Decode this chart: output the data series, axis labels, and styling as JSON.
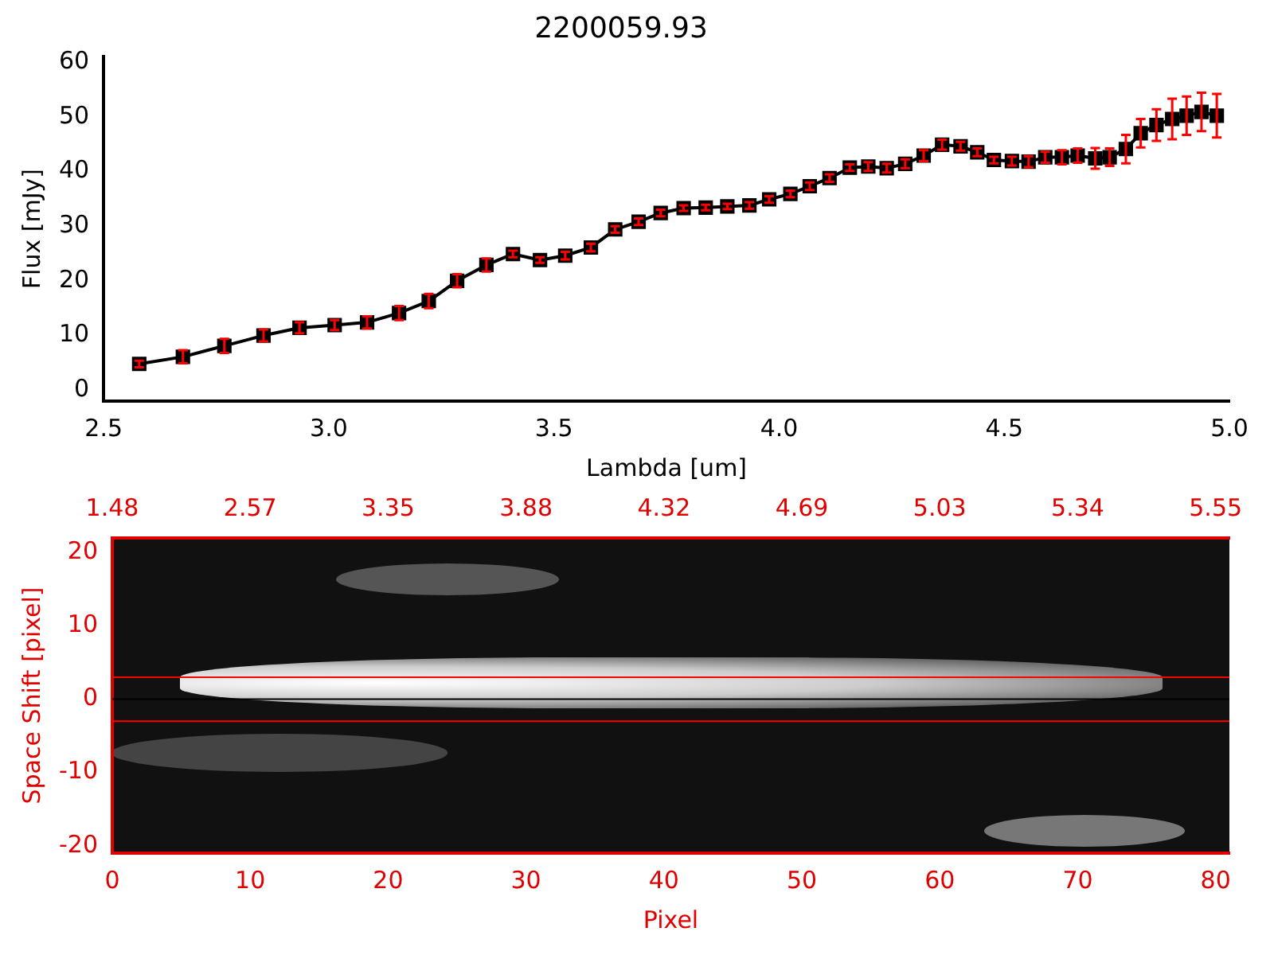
{
  "chart_data": [
    {
      "type": "line",
      "title": "2200059.93",
      "xlabel": "Lambda [um]",
      "ylabel": "Flux [mJy]",
      "xlim": [
        2.5,
        5.0
      ],
      "xticks": [
        2.5,
        {
          "value": 3,
          "label": "3.0"
        },
        3.5,
        {
          "value": 4,
          "label": "4.0"
        },
        4.5,
        {
          "value": 5,
          "label": "5.0"
        }
      ],
      "ylim": [
        -2,
        61
      ],
      "yticks": [
        0,
        10,
        20,
        30,
        40,
        50,
        60
      ],
      "marker": "square",
      "line_style": "solid",
      "grid": false,
      "legend": false,
      "x": [
        2.579,
        2.676,
        2.768,
        2.855,
        2.935,
        3.013,
        3.085,
        3.156,
        3.222,
        3.285,
        3.35,
        3.409,
        3.469,
        3.525,
        3.582,
        3.636,
        3.688,
        3.737,
        3.788,
        3.837,
        3.885,
        3.934,
        3.978,
        4.025,
        4.068,
        4.112,
        4.157,
        4.198,
        4.239,
        4.28,
        4.321,
        4.362,
        4.403,
        4.44,
        4.477,
        4.517,
        4.554,
        4.591,
        4.628,
        4.663,
        4.702,
        4.734,
        4.77,
        4.803,
        4.838,
        4.873,
        4.905,
        4.938,
        4.972
      ],
      "series": [
        {
          "color": "#000000",
          "values": [
            4.8,
            6.1,
            8.1,
            10.0,
            11.4,
            11.9,
            12.4,
            14.1,
            16.3,
            20.0,
            22.9,
            24.9,
            23.8,
            24.6,
            26.1,
            29.4,
            30.8,
            32.4,
            33.3,
            33.4,
            33.6,
            33.8,
            34.9,
            35.9,
            37.3,
            38.8,
            40.7,
            40.9,
            40.6,
            41.4,
            42.9,
            44.9,
            44.6,
            43.5,
            42.1,
            41.9,
            41.8,
            42.6,
            42.6,
            42.9,
            42.4,
            42.6,
            44.1,
            47.0,
            48.5,
            49.6,
            50.2,
            50.9,
            50.2
          ],
          "errors": [
            0.6,
            1.2,
            1.3,
            1.1,
            1.0,
            0.9,
            1.1,
            1.3,
            1.3,
            1.2,
            1.2,
            0.6,
            0.5,
            0.7,
            0.7,
            0.6,
            0.6,
            0.6,
            0.5,
            0.5,
            0.5,
            0.6,
            0.6,
            0.6,
            0.7,
            0.7,
            0.6,
            0.8,
            0.8,
            0.8,
            1.0,
            0.9,
            0.8,
            0.7,
            0.6,
            0.8,
            1.0,
            1.0,
            1.3,
            1.3,
            1.9,
            1.6,
            2.6,
            2.6,
            2.9,
            3.7,
            3.5,
            3.5,
            4.0
          ]
        }
      ]
    },
    {
      "type": "scatter",
      "xlabel": "Pixel",
      "ylabel": "Space Shift [pixel]",
      "xlim": [
        0,
        81
      ],
      "xticks": [
        0,
        10,
        20,
        30,
        40,
        50,
        60,
        70,
        80
      ],
      "annotations": [
        "1.48",
        "2.57",
        "3.35",
        "3.88",
        "4.32",
        "4.69",
        "5.03",
        "5.34",
        "5.55"
      ],
      "ylim": [
        -21,
        22
      ],
      "yticks": [
        -20,
        -10,
        0,
        10,
        20
      ],
      "ref_lines": [
        {
          "axis": "y",
          "value": 3,
          "color": "#ff0000"
        },
        {
          "axis": "y",
          "value": -3,
          "color": "#ff0000"
        },
        {
          "axis": "y",
          "value": 0,
          "color": "#000000"
        }
      ]
    }
  ]
}
